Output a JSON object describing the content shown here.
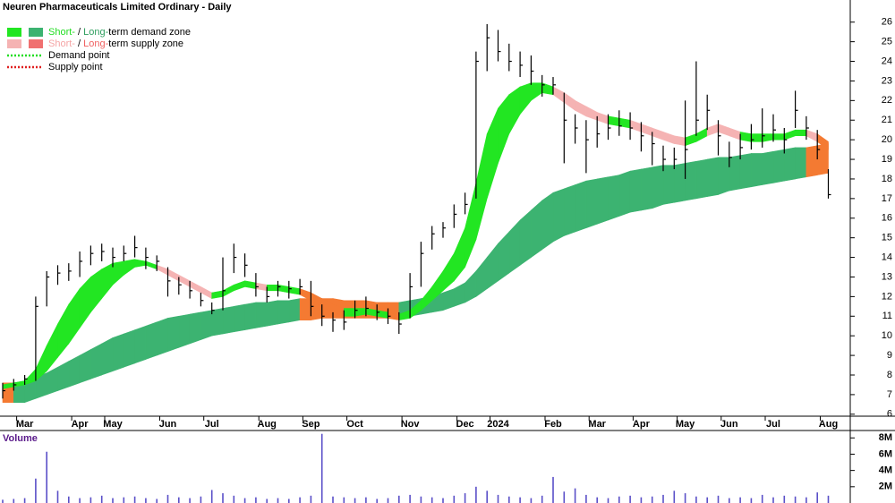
{
  "chart_data": [
    {
      "type": "ohlc",
      "title": "Neuren Pharmaceuticals Limited Ordinary - Daily",
      "categories": [
        null,
        null,
        "Mar",
        null,
        null,
        null,
        null,
        "Apr",
        null,
        null,
        "May",
        null,
        null,
        null,
        null,
        "Jun",
        null,
        null,
        null,
        "Jul",
        null,
        null,
        null,
        null,
        "Aug",
        null,
        null,
        null,
        "Sep",
        null,
        null,
        null,
        "Oct",
        null,
        null,
        null,
        null,
        "Nov",
        null,
        null,
        null,
        null,
        "Dec",
        null,
        null,
        "2024",
        null,
        null,
        null,
        null,
        "Feb",
        null,
        null,
        null,
        "Mar",
        null,
        null,
        null,
        "Apr",
        null,
        null,
        null,
        "May",
        null,
        null,
        null,
        "Jun",
        null,
        null,
        null,
        "Jul",
        null,
        null,
        null,
        null,
        "Aug"
      ],
      "high": [
        7.6,
        7.8,
        8.0,
        12.0,
        13.3,
        13.6,
        13.7,
        14.3,
        14.6,
        14.7,
        14.5,
        14.6,
        15.1,
        14.5,
        14.1,
        13.5,
        13.0,
        12.8,
        12.2,
        11.7,
        14.0,
        14.7,
        14.2,
        13.2,
        12.5,
        12.8,
        12.8,
        12.9,
        12.8,
        11.6,
        11.2,
        11.3,
        11.8,
        12.0,
        11.6,
        11.4,
        11.2,
        13.2,
        14.8,
        15.6,
        15.8,
        16.7,
        17.3,
        24.5,
        25.9,
        25.6,
        24.9,
        24.5,
        24.3,
        23.3,
        23.2,
        22.4,
        21.3,
        21.0,
        21.2,
        21.3,
        21.5,
        21.4,
        20.9,
        20.4,
        19.7,
        19.6,
        22.0,
        24.0,
        22.3,
        21.0,
        19.9,
        20.3,
        20.8,
        21.6,
        21.3,
        20.6,
        22.5,
        21.2,
        20.5,
        18.5
      ],
      "low": [
        6.8,
        7.2,
        7.5,
        7.7,
        11.5,
        12.6,
        12.8,
        13.0,
        13.6,
        13.8,
        13.5,
        13.8,
        14.0,
        13.4,
        13.3,
        12.0,
        12.1,
        11.9,
        11.5,
        11.1,
        11.3,
        13.2,
        13.0,
        12.0,
        11.7,
        12.0,
        11.9,
        12.1,
        11.0,
        10.5,
        10.2,
        10.3,
        10.9,
        11.0,
        10.8,
        10.6,
        10.1,
        10.9,
        12.5,
        14.4,
        15.0,
        15.5,
        16.2,
        17.0,
        23.5,
        24.0,
        23.5,
        23.2,
        22.8,
        22.2,
        22.3,
        18.8,
        19.8,
        18.3,
        19.6,
        20.0,
        20.2,
        20.0,
        19.4,
        18.7,
        18.4,
        18.5,
        18.0,
        20.2,
        20.5,
        19.2,
        18.6,
        19.0,
        19.5,
        19.6,
        19.9,
        19.3,
        20.6,
        20.0,
        19.0,
        17.0
      ],
      "close": [
        7.2,
        7.5,
        7.8,
        11.5,
        13.0,
        13.2,
        13.3,
        13.8,
        14.2,
        14.3,
        14.0,
        14.2,
        14.5,
        14.0,
        13.8,
        12.8,
        12.6,
        12.3,
        11.8,
        11.3,
        12.3,
        14.0,
        13.6,
        12.5,
        12.0,
        12.5,
        12.4,
        12.5,
        11.5,
        11.0,
        10.8,
        10.7,
        11.3,
        11.4,
        11.2,
        11.0,
        10.6,
        12.5,
        14.2,
        15.2,
        15.5,
        16.2,
        16.7,
        24.0,
        25.2,
        24.5,
        24.0,
        23.8,
        23.5,
        22.8,
        22.8,
        21.0,
        20.6,
        20.0,
        20.3,
        20.6,
        20.7,
        20.6,
        20.2,
        19.8,
        19.0,
        19.0,
        19.5,
        21.0,
        21.5,
        20.2,
        19.1,
        19.6,
        20.0,
        20.2,
        20.5,
        20.0,
        21.5,
        20.6,
        19.5,
        17.2
      ],
      "short_upper": [
        7.5,
        7.6,
        7.7,
        8.3,
        9.5,
        10.6,
        11.6,
        12.4,
        13.0,
        13.4,
        13.7,
        13.8,
        13.9,
        13.8,
        13.6,
        13.4,
        13.1,
        12.8,
        12.5,
        12.2,
        12.3,
        12.6,
        12.8,
        12.7,
        12.6,
        12.6,
        12.5,
        12.4,
        12.2,
        11.9,
        11.6,
        11.4,
        11.4,
        11.4,
        11.3,
        11.2,
        11.1,
        11.3,
        11.8,
        12.5,
        13.3,
        14.2,
        15.5,
        17.8,
        20.3,
        21.6,
        22.3,
        22.7,
        22.9,
        22.9,
        22.7,
        22.4,
        22.0,
        21.7,
        21.4,
        21.2,
        21.1,
        21.0,
        20.8,
        20.6,
        20.4,
        20.2,
        20.1,
        20.3,
        20.6,
        20.8,
        20.6,
        20.4,
        20.3,
        20.3,
        20.3,
        20.3,
        20.5,
        20.5,
        20.3,
        19.9
      ],
      "short_lower": [
        7.3,
        7.4,
        7.5,
        7.7,
        8.2,
        8.9,
        9.6,
        10.4,
        11.2,
        11.9,
        12.6,
        13.1,
        13.5,
        13.6,
        13.4,
        13.1,
        12.8,
        12.5,
        12.2,
        11.9,
        12.0,
        12.3,
        12.5,
        12.4,
        12.3,
        12.3,
        12.2,
        12.1,
        11.8,
        11.5,
        11.2,
        11.0,
        11.0,
        11.1,
        11.0,
        10.9,
        10.8,
        10.9,
        11.3,
        11.8,
        12.3,
        12.8,
        13.5,
        14.9,
        17.0,
        18.8,
        20.3,
        21.3,
        22.0,
        22.4,
        22.3,
        21.9,
        21.5,
        21.2,
        21.0,
        20.8,
        20.7,
        20.6,
        20.4,
        20.2,
        20.0,
        19.8,
        19.7,
        19.9,
        20.2,
        20.4,
        20.2,
        20.0,
        19.9,
        19.9,
        20.0,
        20.0,
        20.2,
        20.2,
        19.9,
        19.5
      ],
      "long_upper": [
        7.6,
        7.6,
        7.7,
        7.9,
        8.1,
        8.4,
        8.7,
        9.0,
        9.3,
        9.6,
        9.9,
        10.1,
        10.3,
        10.5,
        10.7,
        10.9,
        11.0,
        11.1,
        11.2,
        11.3,
        11.4,
        11.5,
        11.6,
        11.7,
        11.7,
        11.8,
        11.8,
        11.9,
        11.9,
        11.9,
        11.9,
        11.8,
        11.8,
        11.8,
        11.7,
        11.7,
        11.7,
        11.8,
        11.9,
        12.0,
        12.2,
        12.4,
        12.7,
        13.3,
        14.0,
        14.7,
        15.3,
        15.9,
        16.4,
        16.9,
        17.3,
        17.5,
        17.7,
        17.9,
        18.0,
        18.1,
        18.2,
        18.4,
        18.5,
        18.6,
        18.7,
        18.7,
        18.8,
        18.9,
        19.0,
        19.1,
        19.1,
        19.2,
        19.3,
        19.3,
        19.4,
        19.5,
        19.6,
        19.6,
        19.7,
        19.8
      ],
      "long_lower": [
        6.6,
        6.6,
        6.6,
        6.8,
        7.0,
        7.2,
        7.4,
        7.6,
        7.8,
        8.0,
        8.2,
        8.4,
        8.6,
        8.8,
        9.0,
        9.2,
        9.4,
        9.6,
        9.8,
        10.0,
        10.1,
        10.2,
        10.3,
        10.4,
        10.5,
        10.6,
        10.7,
        10.8,
        10.8,
        10.9,
        10.9,
        10.9,
        10.9,
        10.9,
        10.9,
        10.9,
        10.9,
        11.0,
        11.1,
        11.2,
        11.3,
        11.5,
        11.7,
        12.0,
        12.4,
        12.8,
        13.2,
        13.6,
        14.0,
        14.4,
        14.8,
        15.1,
        15.3,
        15.5,
        15.7,
        15.9,
        16.1,
        16.3,
        16.4,
        16.5,
        16.7,
        16.8,
        16.9,
        17.0,
        17.1,
        17.2,
        17.4,
        17.5,
        17.6,
        17.7,
        17.8,
        17.9,
        18.0,
        18.1,
        18.2,
        18.3
      ],
      "demand_colors": [
        "#22e622",
        "#3cb371"
      ],
      "supply_colors": [
        "#f5b3b3",
        "#f07070"
      ],
      "overlap_color": "#f47a32",
      "bar_color": "#000000",
      "ylim": [
        5.9,
        26.9
      ],
      "yticks": [
        6,
        7,
        8,
        9,
        10,
        11,
        12,
        13,
        14,
        15,
        16,
        17,
        18,
        19,
        20,
        21,
        22,
        23,
        24,
        25,
        26
      ],
      "legend": [
        {
          "parts": [
            {
              "text": "Short-",
              "color": "#22dd22"
            },
            {
              "text": " / "
            },
            {
              "text": "Long-",
              "color": "#2e9e5e"
            },
            {
              "text": "term demand zone"
            }
          ],
          "swatches": [
            "#22e622",
            "#3cb371"
          ]
        },
        {
          "parts": [
            {
              "text": "Short-",
              "color": "#f5a5a5"
            },
            {
              "text": " / "
            },
            {
              "text": "Long-",
              "color": "#f06060"
            },
            {
              "text": "term supply zone"
            }
          ],
          "swatches": [
            "#f5b3b3",
            "#f07070"
          ]
        },
        {
          "parts": [
            {
              "text": "Demand point"
            }
          ],
          "dotted": "#22dd22"
        },
        {
          "parts": [
            {
              "text": "Supply point"
            }
          ],
          "dotted": "#e02020"
        }
      ]
    },
    {
      "type": "bar",
      "title": "Volume",
      "values": [
        0.4,
        0.5,
        0.6,
        3.0,
        6.3,
        1.5,
        0.8,
        0.6,
        0.7,
        0.9,
        0.6,
        0.7,
        0.8,
        0.6,
        0.5,
        1.0,
        0.7,
        0.6,
        0.8,
        1.6,
        1.2,
        0.9,
        0.6,
        0.7,
        0.5,
        0.6,
        0.5,
        0.7,
        0.9,
        8.5,
        0.8,
        0.7,
        0.6,
        0.7,
        0.5,
        0.6,
        0.9,
        1.0,
        0.8,
        0.7,
        0.6,
        0.9,
        1.2,
        2.0,
        1.5,
        1.0,
        0.8,
        0.7,
        0.6,
        0.9,
        3.2,
        1.4,
        1.8,
        1.0,
        0.7,
        0.6,
        0.8,
        0.9,
        0.7,
        0.8,
        1.0,
        1.5,
        1.2,
        0.8,
        0.7,
        0.9,
        0.6,
        0.7,
        0.6,
        1.0,
        0.7,
        0.9,
        0.8,
        0.7,
        1.3,
        0.9
      ],
      "color": "#5a4fc8",
      "ylim": [
        0,
        8.8
      ],
      "yticks": [
        {
          "value": 2,
          "label": "2M"
        },
        {
          "value": 4,
          "label": "4M"
        },
        {
          "value": 6,
          "label": "6M"
        },
        {
          "value": 8,
          "label": "8M"
        }
      ]
    }
  ]
}
